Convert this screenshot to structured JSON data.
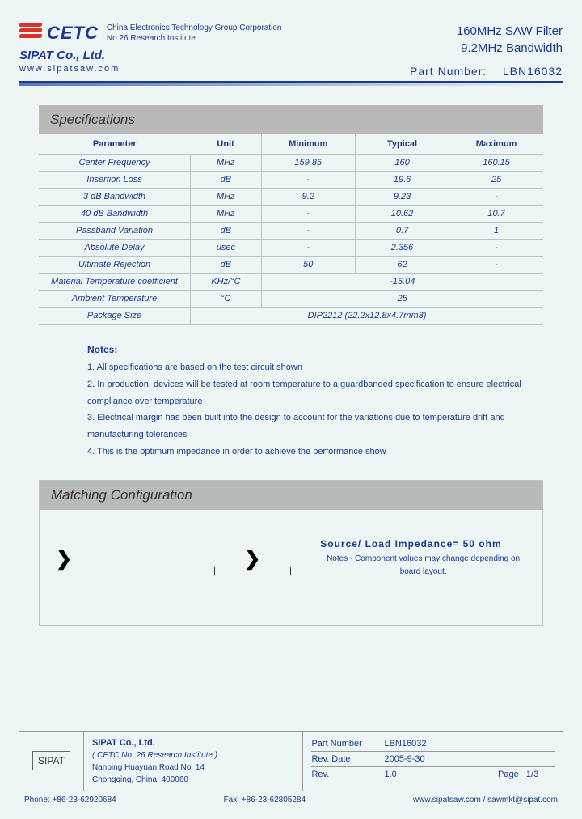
{
  "header": {
    "cetc": "CETC",
    "corp_line1": "China Electronics Technology Group Corporation",
    "corp_line2": "No.26 Research Institute",
    "sipat": "SIPAT Co., Ltd.",
    "url": "www.sipatsaw.com",
    "product_line1": "160MHz SAW Filter",
    "product_line2": "9.2MHz Bandwidth",
    "part_label": "Part Number:",
    "part_value": "LBN16032"
  },
  "specs": {
    "title": "Specifications",
    "columns": [
      "Parameter",
      "Unit",
      "Minimum",
      "Typical",
      "Maximum"
    ],
    "rows": [
      [
        "Center Frequency",
        "MHz",
        "159.85",
        "160",
        "160.15"
      ],
      [
        "Insertion Loss",
        "dB",
        "-",
        "19.6",
        "25"
      ],
      [
        "3 dB Bandwidth",
        "MHz",
        "9.2",
        "9.23",
        "-"
      ],
      [
        "40 dB Bandwidth",
        "MHz",
        "-",
        "10.62",
        "10.7"
      ],
      [
        "Passband Variation",
        "dB",
        "-",
        "0.7",
        "1"
      ],
      [
        "Absolute Delay",
        "usec",
        "-",
        "2.356",
        "-"
      ],
      [
        "Ultimate Rejection",
        "dB",
        "50",
        "62",
        "-"
      ]
    ],
    "merged_rows": [
      {
        "param": "Material Temperature coefficient",
        "unit": "KHz/°C",
        "value": "-15.04"
      },
      {
        "param": "Ambient Temperature",
        "unit": "°C",
        "value": "25"
      }
    ],
    "package_row": {
      "param": "Package Size",
      "value": "DIP2212   (22.2x12.8x4.7mm3)"
    }
  },
  "notes": {
    "title": "Notes:",
    "items": [
      "1. All specifications are based on the test circuit shown",
      "2. In production, devices will be tested at room temperature to a guardbanded specification to ensure electrical compliance over temperature",
      "3. Electrical margin has been built into the design to account for the variations due to temperature drift and manufacturing tolerances",
      "4. This is the optimum impedance in order to achieve the performance show"
    ]
  },
  "matching": {
    "title": "Matching Configuration",
    "impedance": "Source/ Load Impedance= 50 ohm",
    "note": "Notes - Component values may change depending on board layout."
  },
  "footer": {
    "logo": "SIPAT",
    "co_name": "SIPAT Co., Ltd.",
    "institute": "( CETC No. 26 Research Institute )",
    "addr1": "Nanping Huayuan Road No. 14",
    "addr2": "Chongqing, China, 400060",
    "part_label": "Part Number",
    "part_value": "LBN16032",
    "date_label": "Rev. Date",
    "date_value": "2005-9-30",
    "rev_label": "Rev.",
    "rev_value": "1.0",
    "page_label": "Page",
    "page_value": "1/3",
    "phone": "Phone: +86-23-62920684",
    "fax": "Fax: +86-23-62805284",
    "web": "www.sipatsaw.com / sawmkt@sipat.com"
  }
}
